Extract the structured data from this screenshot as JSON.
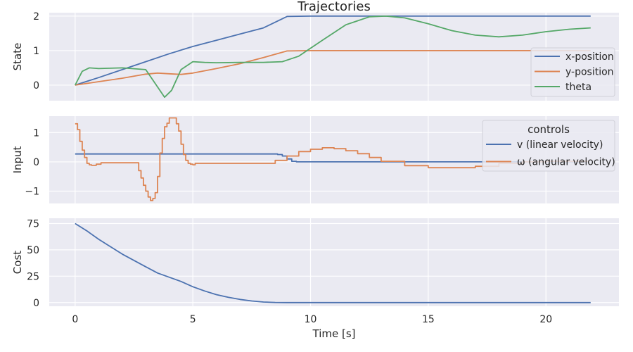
{
  "chart_data": [
    {
      "type": "line",
      "title": "Trajectories",
      "ylabel": "State",
      "xlabel": "",
      "xlim": [
        -1.1,
        23.1
      ],
      "ylim": [
        -0.45,
        2.1
      ],
      "yticks": [
        0,
        1,
        2
      ],
      "grid": true,
      "legend": {
        "title": "",
        "position": "right",
        "entries": [
          "x-position",
          "y-position",
          "theta"
        ]
      },
      "series": [
        {
          "name": "x-position",
          "color": "#4c72b0",
          "step": false,
          "x": [
            0,
            1,
            2,
            3,
            4,
            5,
            6,
            7,
            8,
            9,
            10,
            12,
            14,
            16,
            18,
            20,
            21.9
          ],
          "y": [
            0,
            0.22,
            0.45,
            0.68,
            0.91,
            1.12,
            1.3,
            1.48,
            1.66,
            1.99,
            2.0,
            2.0,
            2.0,
            2.0,
            2.0,
            2.0,
            2.0
          ]
        },
        {
          "name": "y-position",
          "color": "#dd8452",
          "step": false,
          "x": [
            0,
            0.5,
            1,
            2,
            3,
            3.5,
            4,
            4.5,
            5,
            6,
            7,
            8,
            9,
            10,
            12,
            14,
            16,
            18,
            20,
            21.9
          ],
          "y": [
            0,
            0.05,
            0.1,
            0.2,
            0.32,
            0.35,
            0.33,
            0.31,
            0.35,
            0.48,
            0.62,
            0.8,
            0.99,
            1.0,
            1.0,
            1.0,
            1.0,
            1.0,
            1.0,
            1.0
          ]
        },
        {
          "name": "theta",
          "color": "#55a868",
          "step": false,
          "x": [
            0,
            0.3,
            0.6,
            1,
            2,
            3,
            3.4,
            3.8,
            4.1,
            4.5,
            5,
            5.5,
            6,
            7,
            8,
            8.8,
            9.5,
            10.5,
            11.5,
            12.5,
            13.2,
            14,
            15,
            16,
            17,
            18,
            19,
            20,
            21,
            21.9
          ],
          "y": [
            0,
            0.4,
            0.5,
            0.48,
            0.5,
            0.45,
            0.05,
            -0.35,
            -0.15,
            0.45,
            0.68,
            0.66,
            0.65,
            0.66,
            0.66,
            0.68,
            0.84,
            1.3,
            1.75,
            1.98,
            2.0,
            1.95,
            1.78,
            1.58,
            1.45,
            1.4,
            1.45,
            1.55,
            1.62,
            1.66
          ]
        }
      ]
    },
    {
      "type": "line",
      "title": "",
      "ylabel": "Input",
      "xlabel": "",
      "xlim": [
        -1.1,
        23.1
      ],
      "ylim": [
        -1.42,
        1.56
      ],
      "yticks": [
        -1,
        0,
        1
      ],
      "grid": true,
      "legend": {
        "title": "controls",
        "position": "top-right",
        "entries": [
          "v (linear velocity)",
          "ω (angular velocity)"
        ]
      },
      "series": [
        {
          "name": "v (linear velocity)",
          "color": "#4c72b0",
          "step": true,
          "x": [
            0,
            8.6,
            8.8,
            9.0,
            9.2,
            9.4,
            21.8
          ],
          "y": [
            0.27,
            0.25,
            0.2,
            0.1,
            0.02,
            0.0,
            0.0
          ]
        },
        {
          "name": "ω (angular velocity)",
          "color": "#dd8452",
          "step": true,
          "x": [
            0,
            0.1,
            0.2,
            0.3,
            0.4,
            0.5,
            0.6,
            0.7,
            0.9,
            1.1,
            2.5,
            2.7,
            2.8,
            2.9,
            3.0,
            3.1,
            3.2,
            3.3,
            3.4,
            3.5,
            3.6,
            3.7,
            3.8,
            3.9,
            4.0,
            4.1,
            4.3,
            4.4,
            4.5,
            4.6,
            4.7,
            4.8,
            4.9,
            5.0,
            5.1,
            5.5,
            6.0,
            8.0,
            8.5,
            9.0,
            9.5,
            10.0,
            10.5,
            11.0,
            11.5,
            12.0,
            12.5,
            13.0,
            14.0,
            15.0,
            16.0,
            17.0,
            18.0,
            19.0,
            20.0,
            21.8
          ],
          "y": [
            1.3,
            1.1,
            0.7,
            0.4,
            0.15,
            -0.05,
            -0.1,
            -0.12,
            -0.08,
            -0.03,
            -0.03,
            -0.3,
            -0.55,
            -0.8,
            -1.0,
            -1.2,
            -1.32,
            -1.25,
            -1.05,
            -0.5,
            0.3,
            0.8,
            1.2,
            1.32,
            1.5,
            1.5,
            1.3,
            1.05,
            0.6,
            0.25,
            0.05,
            -0.05,
            -0.08,
            -0.1,
            -0.05,
            -0.05,
            -0.05,
            -0.05,
            0.05,
            0.2,
            0.35,
            0.43,
            0.48,
            0.45,
            0.38,
            0.28,
            0.15,
            0.02,
            -0.13,
            -0.2,
            -0.2,
            -0.15,
            -0.05,
            0.0,
            0.02,
            0.02
          ]
        }
      ]
    },
    {
      "type": "line",
      "title": "",
      "ylabel": "Cost",
      "xlabel": "Time [s]",
      "xlim": [
        -1.1,
        23.1
      ],
      "ylim": [
        -3.5,
        80
      ],
      "yticks": [
        0,
        25,
        50,
        75
      ],
      "xticks": [
        0,
        5,
        10,
        15,
        20
      ],
      "grid": true,
      "legend": null,
      "series": [
        {
          "name": "",
          "color": "#4c72b0",
          "step": false,
          "x": [
            0,
            0.5,
            1,
            1.5,
            2,
            2.5,
            3,
            3.5,
            4,
            4.5,
            5,
            5.5,
            6,
            6.5,
            7,
            7.5,
            8,
            8.5,
            9,
            10,
            12,
            15,
            18,
            21.9
          ],
          "y": [
            75,
            68,
            60,
            53,
            46,
            40,
            34,
            28,
            24,
            20,
            15,
            11,
            7.5,
            5,
            3,
            1.5,
            0.5,
            0.1,
            0,
            0,
            0,
            0,
            0,
            0
          ]
        }
      ]
    }
  ]
}
